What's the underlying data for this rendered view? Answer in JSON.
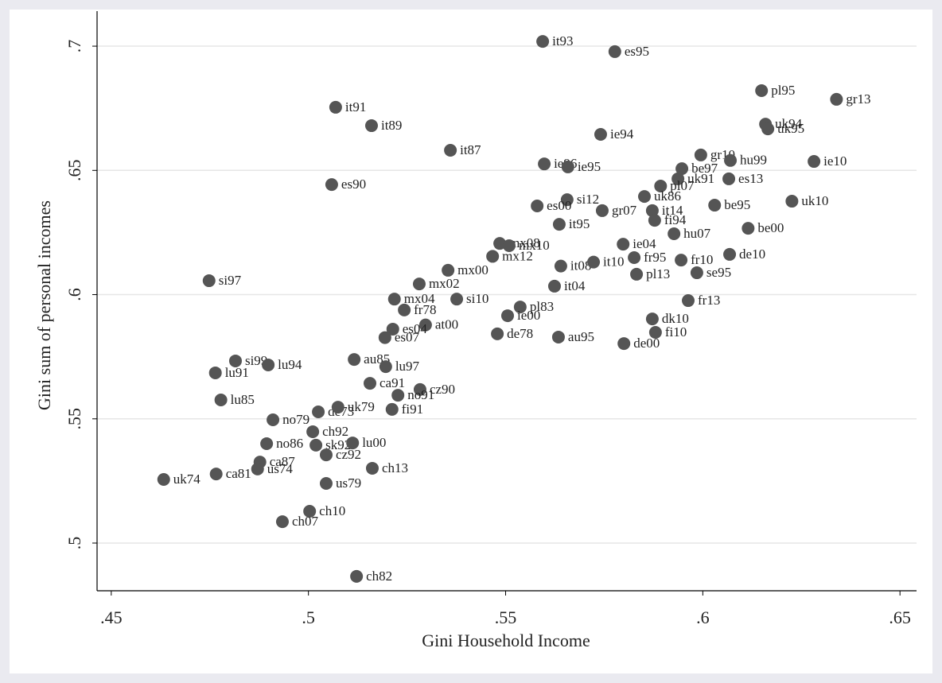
{
  "chart_data": {
    "type": "scatter",
    "x_label": "Gini Household Income",
    "y_label": "Gini sum of personal incomes",
    "xlim": [
      0.4464,
      0.6542
    ],
    "ylim": [
      0.4808,
      0.7141
    ],
    "xticks": [
      {
        "value": 0.45,
        "label": ".45"
      },
      {
        "value": 0.5,
        "label": ".5"
      },
      {
        "value": 0.55,
        "label": ".55"
      },
      {
        "value": 0.6,
        "label": ".6"
      },
      {
        "value": 0.65,
        "label": ".65"
      }
    ],
    "yticks": [
      {
        "value": 0.5,
        "label": ".5"
      },
      {
        "value": 0.55,
        "label": ".55"
      },
      {
        "value": 0.6,
        "label": ".6"
      },
      {
        "value": 0.65,
        "label": ".65"
      },
      {
        "value": 0.7,
        "label": ".7"
      }
    ],
    "grid": true,
    "color": "#555555",
    "labels": [
      "it93",
      "es95",
      "pl95",
      "gr13",
      "uk94",
      "uk95",
      "it91",
      "it89",
      "ie94",
      "it87",
      "gr10",
      "hu99",
      "ie10",
      "ie96",
      "ie95",
      "be97",
      "uk91",
      "es13",
      "es90",
      "pl07",
      "uk86",
      "si12",
      "be95",
      "es00",
      "gr07",
      "uk10",
      "it14",
      "fi94",
      "it95",
      "hu07",
      "be00",
      "mx08",
      "mx10",
      "ie04",
      "mx12",
      "it08",
      "it10",
      "fr10",
      "fr95",
      "de10",
      "se95",
      "pl13",
      "mx00",
      "mx02",
      "it04",
      "mx04",
      "si10",
      "si97",
      "fr78",
      "pl83",
      "fr13",
      "ie00",
      "at00",
      "dk10",
      "es04",
      "es07",
      "de78",
      "au95",
      "fi10",
      "de00",
      "au85",
      "lu97",
      "si99",
      "lu94",
      "lu91",
      "lu85",
      "ca91",
      "cz90",
      "no91",
      "no79",
      "de73",
      "uk79",
      "fi91",
      "ch92",
      "no86",
      "sk92",
      "lu00",
      "cz92",
      "ca87",
      "us74",
      "ch13",
      "ca81",
      "uk74",
      "us79",
      "ch10",
      "ch07",
      "ch82"
    ],
    "x": [
      0.5594,
      0.5777,
      0.6149,
      0.6339,
      0.6159,
      0.6165,
      0.5069,
      0.516,
      0.5741,
      0.536,
      0.5995,
      0.607,
      0.6282,
      0.5598,
      0.5658,
      0.5947,
      0.5937,
      0.6066,
      0.5059,
      0.5893,
      0.5852,
      0.5656,
      0.603,
      0.558,
      0.5745,
      0.6226,
      0.5872,
      0.5878,
      0.5636,
      0.5927,
      0.6115,
      0.5485,
      0.5509,
      0.5798,
      0.5467,
      0.564,
      0.5723,
      0.5945,
      0.5826,
      0.6068,
      0.5985,
      0.5832,
      0.5354,
      0.5281,
      0.5624,
      0.5218,
      0.5376,
      0.4748,
      0.5243,
      0.5537,
      0.5963,
      0.5505,
      0.5297,
      0.5872,
      0.5214,
      0.5194,
      0.5479,
      0.5634,
      0.588,
      0.58,
      0.5116,
      0.5196,
      0.4815,
      0.4898,
      0.4764,
      0.4778,
      0.5156,
      0.5283,
      0.5227,
      0.491,
      0.5025,
      0.5075,
      0.5212,
      0.5011,
      0.4894,
      0.5019,
      0.5112,
      0.5045,
      0.4877,
      0.4871,
      0.5162,
      0.4766,
      0.4633,
      0.5045,
      0.5003,
      0.4934,
      0.5122
    ],
    "values": [
      0.7019,
      0.6978,
      0.6821,
      0.6786,
      0.6686,
      0.6667,
      0.6754,
      0.668,
      0.6645,
      0.6581,
      0.6562,
      0.654,
      0.6536,
      0.6526,
      0.6514,
      0.6507,
      0.6466,
      0.6466,
      0.6443,
      0.6437,
      0.6395,
      0.6382,
      0.636,
      0.6357,
      0.6338,
      0.6376,
      0.6338,
      0.6299,
      0.6283,
      0.6245,
      0.6267,
      0.6206,
      0.6197,
      0.6203,
      0.6154,
      0.6115,
      0.6131,
      0.6139,
      0.6149,
      0.6162,
      0.6088,
      0.6082,
      0.6098,
      0.6043,
      0.6034,
      0.5982,
      0.5982,
      0.6056,
      0.5938,
      0.595,
      0.5976,
      0.5915,
      0.5878,
      0.5902,
      0.5861,
      0.5827,
      0.5842,
      0.5829,
      0.5848,
      0.5803,
      0.5739,
      0.571,
      0.5733,
      0.5717,
      0.5685,
      0.5576,
      0.5643,
      0.5618,
      0.5595,
      0.5496,
      0.5528,
      0.5547,
      0.5538,
      0.5448,
      0.54,
      0.5394,
      0.5403,
      0.5355,
      0.5326,
      0.5298,
      0.5301,
      0.5278,
      0.5256,
      0.524,
      0.5128,
      0.5086,
      0.4866
    ]
  }
}
